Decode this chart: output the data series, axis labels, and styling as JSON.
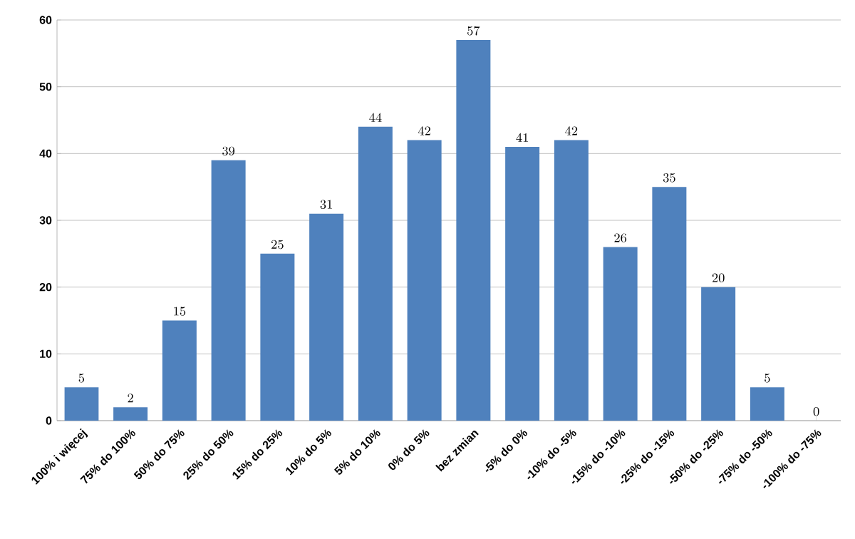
{
  "chart_data": {
    "type": "bar",
    "categories": [
      "100% i więcej",
      "75% do 100%",
      "50% do 75%",
      "25% do 50%",
      "15% do 25%",
      "10% do 5%",
      "5% do 10%",
      "0% do 5%",
      "bez zmian",
      "-5% do 0%",
      "-10% do -5%",
      "-15% do -10%",
      "-25% do -15%",
      "-50% do -25%",
      "-75% do -50%",
      "-100% do -75%"
    ],
    "values": [
      5,
      2,
      15,
      39,
      25,
      31,
      44,
      42,
      57,
      41,
      42,
      26,
      35,
      20,
      5,
      0
    ],
    "color": "#4f81bd",
    "ylim": [
      0,
      60
    ],
    "yticks": [
      0,
      10,
      20,
      30,
      40,
      50,
      60
    ],
    "grid": "y",
    "data_labels": true
  }
}
